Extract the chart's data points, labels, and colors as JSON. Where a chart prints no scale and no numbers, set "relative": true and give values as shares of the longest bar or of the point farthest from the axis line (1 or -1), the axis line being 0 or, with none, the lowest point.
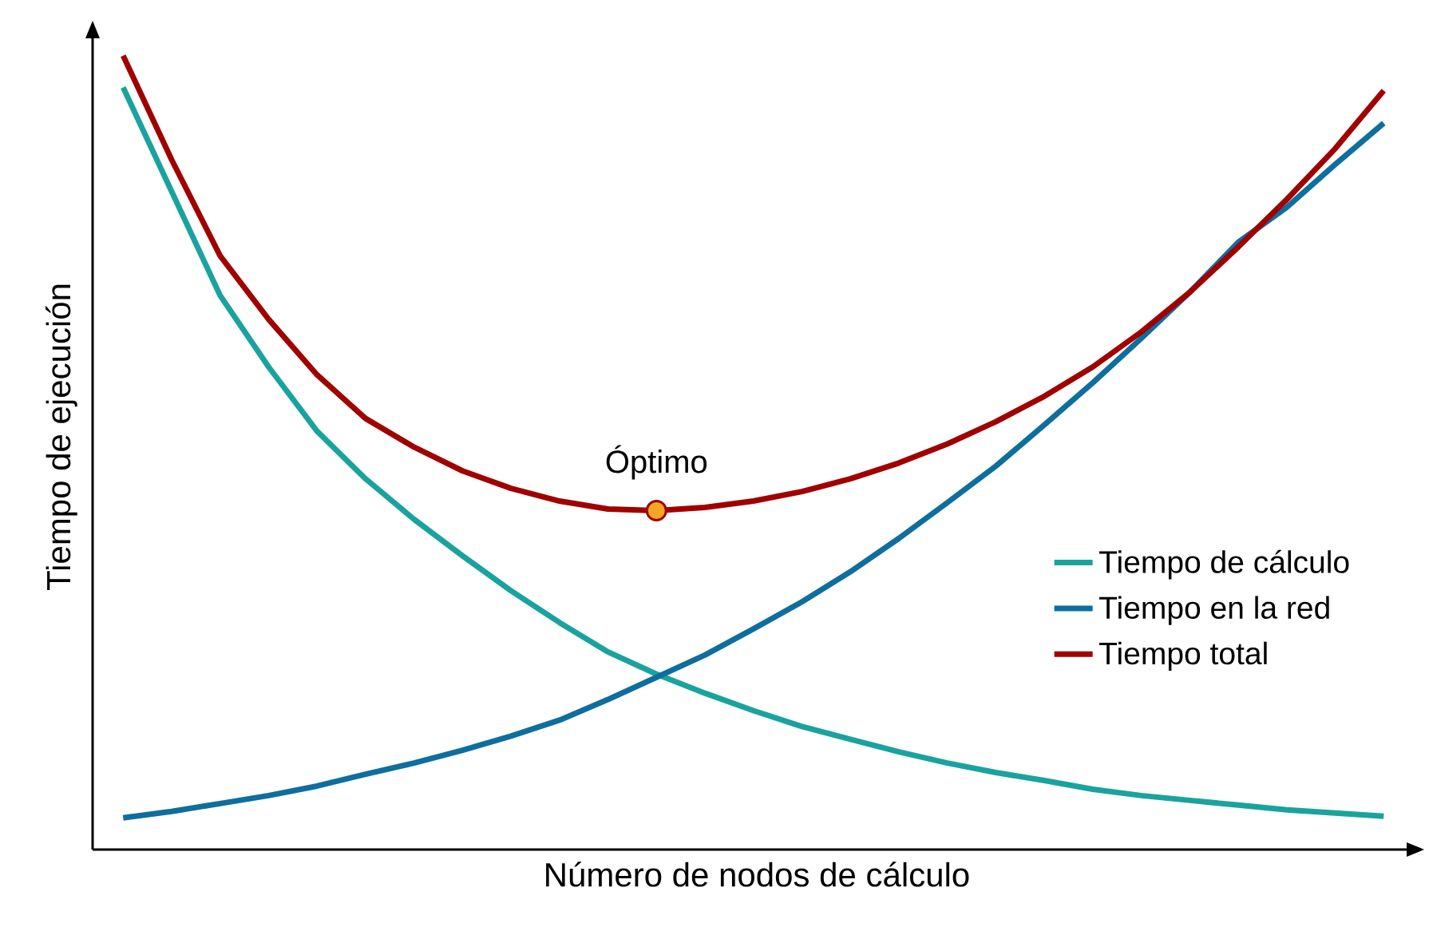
{
  "chart_data": {
    "type": "line",
    "relative": true,
    "xlabel": "Número de nodos de cálculo",
    "ylabel": "Tiempo de ejecución",
    "legend": "right",
    "annotations": [
      {
        "text": "Óptimo",
        "y": 0.427
      }
    ],
    "categories": [
      null,
      null,
      null,
      null,
      null,
      null,
      null,
      null,
      null,
      null,
      null,
      null,
      null,
      null,
      null,
      null,
      null,
      null,
      null,
      null,
      null,
      null,
      null,
      null,
      null,
      null,
      null
    ],
    "series": [
      {
        "name": "Tiempo de cálculo",
        "color": "#1aa39e",
        "values": [
          0.96,
          0.829,
          0.698,
          0.608,
          0.527,
          0.467,
          0.416,
          0.37,
          0.326,
          0.286,
          0.249,
          0.221,
          0.197,
          0.175,
          0.155,
          0.139,
          0.123,
          0.109,
          0.097,
          0.087,
          0.076,
          0.068,
          0.062,
          0.056,
          0.05,
          0.046,
          0.042
        ]
      },
      {
        "name": "Tiempo en la red",
        "color": "#0e6e9e",
        "values": [
          0.04,
          0.048,
          0.058,
          0.068,
          0.08,
          0.095,
          0.109,
          0.125,
          0.143,
          0.163,
          0.189,
          0.217,
          0.245,
          0.278,
          0.312,
          0.35,
          0.392,
          0.437,
          0.483,
          0.535,
          0.588,
          0.644,
          0.702,
          0.765,
          0.809,
          0.863,
          0.915
        ]
      },
      {
        "name": "Tiempo total",
        "color": "#a00000",
        "values": [
          1.0,
          0.869,
          0.748,
          0.668,
          0.598,
          0.543,
          0.507,
          0.477,
          0.455,
          0.439,
          0.429,
          0.427,
          0.431,
          0.439,
          0.451,
          0.467,
          0.487,
          0.511,
          0.539,
          0.571,
          0.608,
          0.652,
          0.702,
          0.759,
          0.819,
          0.883,
          0.956
        ]
      }
    ]
  }
}
